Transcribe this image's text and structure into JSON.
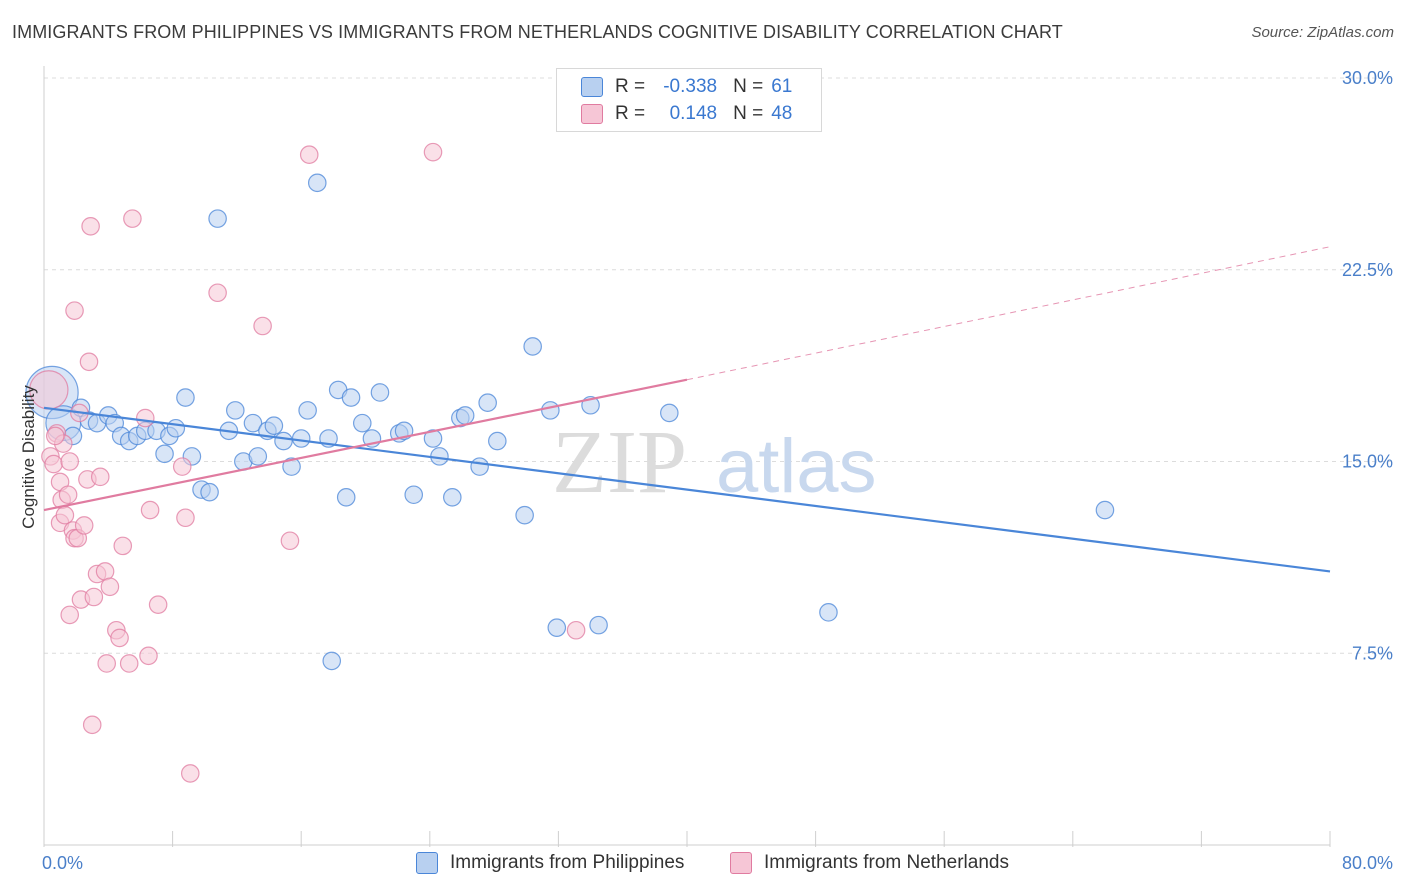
{
  "header": {
    "title": "IMMIGRANTS FROM PHILIPPINES VS IMMIGRANTS FROM NETHERLANDS COGNITIVE DISABILITY CORRELATION CHART",
    "source": "Source: ZipAtlas.com"
  },
  "watermark": {
    "zip": "ZIP",
    "atlas": "atlas"
  },
  "legend": {
    "philippines": {
      "r_label": "R =",
      "r_value": "-0.338",
      "n_label": "N =",
      "n_value": "61",
      "color": "#4a86d8"
    },
    "netherlands": {
      "r_label": "R =",
      "r_value": "0.148",
      "n_label": "N =",
      "n_value": "48",
      "color": "#e07ba0"
    }
  },
  "bottom_legend": {
    "philippines": "Immigrants from Philippines",
    "netherlands": "Immigrants from Netherlands"
  },
  "chart_data": {
    "type": "scatter",
    "title": "IMMIGRANTS FROM PHILIPPINES VS IMMIGRANTS FROM NETHERLANDS COGNITIVE DISABILITY CORRELATION CHART",
    "xlabel": "",
    "ylabel": "Cognitive Disability",
    "xlim": [
      0,
      80
    ],
    "ylim": [
      0,
      30
    ],
    "x_tick_labels": [
      "0.0%",
      "80.0%"
    ],
    "y_ticks": [
      7.5,
      15.0,
      22.5,
      30.0
    ],
    "y_tick_labels": [
      "7.5%",
      "15.0%",
      "22.5%",
      "30.0%"
    ],
    "grid": true,
    "legend_position": "top-center",
    "series": [
      {
        "name": "Immigrants from Philippines",
        "color": "#4a86d8",
        "fill": "#b8d0f0",
        "trend": {
          "x": [
            0,
            80
          ],
          "y": [
            17.1,
            10.7
          ],
          "style": "solid"
        },
        "points": [
          [
            0.5,
            17.7
          ],
          [
            1.2,
            16.5
          ],
          [
            1.8,
            16.0
          ],
          [
            2.3,
            17.1
          ],
          [
            2.8,
            16.6
          ],
          [
            3.3,
            16.5
          ],
          [
            4.0,
            16.8
          ],
          [
            4.4,
            16.5
          ],
          [
            4.8,
            16.0
          ],
          [
            5.3,
            15.8
          ],
          [
            5.8,
            16.0
          ],
          [
            6.3,
            16.2
          ],
          [
            7.0,
            16.2
          ],
          [
            7.5,
            15.3
          ],
          [
            7.8,
            16.0
          ],
          [
            8.2,
            16.3
          ],
          [
            8.8,
            17.5
          ],
          [
            9.2,
            15.2
          ],
          [
            9.8,
            13.9
          ],
          [
            10.3,
            13.8
          ],
          [
            10.8,
            24.5
          ],
          [
            11.5,
            16.2
          ],
          [
            11.9,
            17.0
          ],
          [
            12.4,
            15.0
          ],
          [
            13.0,
            16.5
          ],
          [
            13.3,
            15.2
          ],
          [
            13.9,
            16.2
          ],
          [
            14.3,
            16.4
          ],
          [
            14.9,
            15.8
          ],
          [
            15.4,
            14.8
          ],
          [
            16.0,
            15.9
          ],
          [
            16.4,
            17.0
          ],
          [
            17.0,
            25.9
          ],
          [
            17.7,
            15.9
          ],
          [
            18.3,
            17.8
          ],
          [
            18.8,
            13.6
          ],
          [
            19.1,
            17.5
          ],
          [
            19.8,
            16.5
          ],
          [
            20.4,
            15.9
          ],
          [
            20.9,
            17.7
          ],
          [
            22.1,
            16.1
          ],
          [
            22.4,
            16.2
          ],
          [
            23.0,
            13.7
          ],
          [
            24.2,
            15.9
          ],
          [
            24.6,
            15.2
          ],
          [
            25.4,
            13.6
          ],
          [
            25.9,
            16.7
          ],
          [
            27.1,
            14.8
          ],
          [
            27.6,
            17.3
          ],
          [
            28.2,
            15.8
          ],
          [
            29.9,
            12.9
          ],
          [
            30.4,
            19.5
          ],
          [
            31.5,
            17.0
          ],
          [
            31.9,
            8.5
          ],
          [
            34.0,
            17.2
          ],
          [
            34.5,
            8.6
          ],
          [
            38.9,
            16.9
          ],
          [
            48.8,
            9.1
          ],
          [
            66.0,
            13.1
          ],
          [
            17.9,
            7.2
          ],
          [
            26.2,
            16.8
          ]
        ],
        "sizes": [
          30,
          20,
          10,
          10,
          10,
          10,
          10,
          10,
          10,
          10,
          10,
          10,
          10,
          10,
          10,
          10,
          10,
          10,
          10,
          10,
          10,
          10,
          10,
          10,
          10,
          10,
          10,
          10,
          10,
          10,
          10,
          10,
          10,
          10,
          10,
          10,
          10,
          10,
          10,
          10,
          10,
          10,
          10,
          10,
          10,
          10,
          10,
          10,
          10,
          10,
          10,
          10,
          10,
          10,
          10,
          10,
          10,
          10,
          10,
          10,
          10
        ]
      },
      {
        "name": "Immigrants from Netherlands",
        "color": "#e07ba0",
        "fill": "#f6c6d6",
        "trend": {
          "x": [
            0,
            40
          ],
          "y": [
            13.1,
            18.2
          ],
          "style": "solid",
          "extended": {
            "x": [
              40,
              80
            ],
            "y": [
              18.2,
              23.4
            ],
            "style": "dashed"
          }
        },
        "points": [
          [
            0.3,
            17.8
          ],
          [
            0.4,
            15.2
          ],
          [
            0.6,
            14.9
          ],
          [
            0.8,
            16.1
          ],
          [
            1.0,
            14.2
          ],
          [
            1.2,
            15.7
          ],
          [
            1.1,
            13.5
          ],
          [
            1.0,
            12.6
          ],
          [
            1.3,
            12.9
          ],
          [
            1.5,
            13.7
          ],
          [
            1.6,
            15.0
          ],
          [
            1.8,
            12.3
          ],
          [
            1.9,
            12.0
          ],
          [
            2.1,
            12.0
          ],
          [
            2.3,
            9.6
          ],
          [
            2.5,
            12.5
          ],
          [
            2.7,
            14.3
          ],
          [
            2.8,
            18.9
          ],
          [
            2.9,
            24.2
          ],
          [
            3.1,
            9.7
          ],
          [
            3.3,
            10.6
          ],
          [
            3.5,
            14.4
          ],
          [
            3.8,
            10.7
          ],
          [
            3.9,
            7.1
          ],
          [
            4.1,
            10.1
          ],
          [
            4.5,
            8.4
          ],
          [
            4.7,
            8.1
          ],
          [
            4.9,
            11.7
          ],
          [
            5.3,
            7.1
          ],
          [
            5.5,
            24.5
          ],
          [
            6.3,
            16.7
          ],
          [
            6.5,
            7.4
          ],
          [
            6.6,
            13.1
          ],
          [
            7.1,
            9.4
          ],
          [
            8.6,
            14.8
          ],
          [
            8.8,
            12.8
          ],
          [
            9.1,
            2.8
          ],
          [
            10.8,
            21.6
          ],
          [
            13.6,
            20.3
          ],
          [
            15.3,
            11.9
          ],
          [
            16.5,
            27.0
          ],
          [
            24.2,
            27.1
          ],
          [
            33.1,
            8.4
          ],
          [
            1.9,
            20.9
          ],
          [
            3.0,
            4.7
          ],
          [
            1.6,
            9.0
          ],
          [
            2.2,
            16.9
          ],
          [
            0.7,
            16.0
          ]
        ],
        "sizes": [
          22,
          10,
          10,
          10,
          10,
          10,
          10,
          10,
          10,
          10,
          10,
          10,
          10,
          10,
          10,
          10,
          10,
          10,
          10,
          10,
          10,
          10,
          10,
          10,
          10,
          10,
          10,
          10,
          10,
          10,
          10,
          10,
          10,
          10,
          10,
          10,
          10,
          10,
          10,
          10,
          10,
          10,
          10,
          10,
          10,
          10,
          10,
          10
        ]
      }
    ]
  }
}
